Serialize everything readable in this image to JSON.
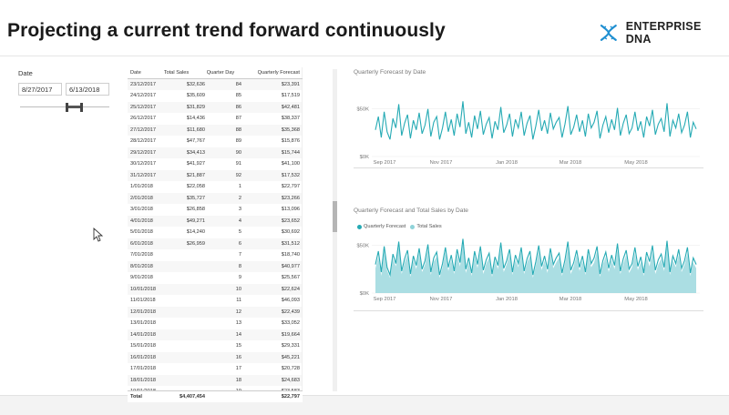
{
  "page": {
    "title": "Projecting a current trend forward continuously"
  },
  "logo": {
    "text": "ENTERPRISE DNA",
    "icon": "dna-helix-icon",
    "color": "#1f8fd1"
  },
  "slicer": {
    "title": "Date",
    "start": "8/27/2017",
    "end": "6/13/2018"
  },
  "table": {
    "columns": [
      "Date",
      "Total Sales",
      "Quarter Day",
      "Quarterly Forecast"
    ],
    "rows": [
      [
        "23/12/2017",
        "$32,636",
        "84",
        "$23,391"
      ],
      [
        "24/12/2017",
        "$35,609",
        "85",
        "$17,519"
      ],
      [
        "25/12/2017",
        "$31,829",
        "86",
        "$42,481"
      ],
      [
        "26/12/2017",
        "$14,436",
        "87",
        "$38,337"
      ],
      [
        "27/12/2017",
        "$11,680",
        "88",
        "$35,368"
      ],
      [
        "28/12/2017",
        "$47,767",
        "89",
        "$15,876"
      ],
      [
        "29/12/2017",
        "$34,413",
        "90",
        "$15,744"
      ],
      [
        "30/12/2017",
        "$41,927",
        "91",
        "$41,100"
      ],
      [
        "31/12/2017",
        "$21,887",
        "92",
        "$17,532"
      ],
      [
        "1/01/2018",
        "$22,058",
        "1",
        "$22,797"
      ],
      [
        "2/01/2018",
        "$35,727",
        "2",
        "$23,266"
      ],
      [
        "3/01/2018",
        "$26,858",
        "3",
        "$13,096"
      ],
      [
        "4/01/2018",
        "$49,271",
        "4",
        "$23,652"
      ],
      [
        "5/01/2018",
        "$14,240",
        "5",
        "$30,692"
      ],
      [
        "6/01/2018",
        "$26,959",
        "6",
        "$31,512"
      ],
      [
        "7/01/2018",
        "",
        "7",
        "$18,740"
      ],
      [
        "8/01/2018",
        "",
        "8",
        "$40,977"
      ],
      [
        "9/01/2018",
        "",
        "9",
        "$25,567"
      ],
      [
        "10/01/2018",
        "",
        "10",
        "$22,624"
      ],
      [
        "11/01/2018",
        "",
        "11",
        "$46,093"
      ],
      [
        "12/01/2018",
        "",
        "12",
        "$22,439"
      ],
      [
        "13/01/2018",
        "",
        "13",
        "$33,052"
      ],
      [
        "14/01/2018",
        "",
        "14",
        "$19,664"
      ],
      [
        "15/01/2018",
        "",
        "15",
        "$29,331"
      ],
      [
        "16/01/2018",
        "",
        "16",
        "$45,221"
      ],
      [
        "17/01/2018",
        "",
        "17",
        "$20,728"
      ],
      [
        "18/01/2018",
        "",
        "18",
        "$24,683"
      ],
      [
        "19/01/2018",
        "",
        "19",
        "$23,583"
      ],
      [
        "20/01/2018",
        "",
        "20",
        "$20,670"
      ],
      [
        "21/01/2018",
        "",
        "21",
        "$10,697"
      ]
    ],
    "total": {
      "label": "Total",
      "sales": "$4,407,454",
      "forecast": "$22,797"
    }
  },
  "colors": {
    "teal": "#25aab4",
    "teal_light": "#8fd3d9",
    "text": "#333333"
  },
  "chart_data": [
    {
      "type": "line",
      "title": "Quarterly Forecast by Date",
      "y_ticks": [
        "$50K",
        "$0K"
      ],
      "ylim": [
        0,
        65000
      ],
      "x_ticks": [
        "Sep 2017",
        "Nov 2017",
        "Jan 2018",
        "Mar 2018",
        "May 2018"
      ],
      "x_range": [
        "2017-08-27",
        "2018-06-13"
      ],
      "series": [
        {
          "values": [
            28000,
            42000,
            20000,
            47000,
            26000,
            18000,
            40000,
            30000,
            55000,
            22000,
            35000,
            44000,
            19000,
            38000,
            28000,
            46000,
            24000,
            33000,
            50000,
            21000,
            36000,
            42000,
            18000,
            30000,
            47000,
            26000,
            39000,
            22000,
            45000,
            31000,
            58000,
            24000,
            36000,
            20000,
            43000,
            29000,
            48000,
            23000,
            34000,
            41000,
            19000,
            37000,
            28000,
            52000,
            25000,
            33000,
            45000,
            21000,
            39000,
            30000,
            47000,
            22000,
            35000,
            43000,
            18000,
            32000,
            49000,
            27000,
            38000,
            24000,
            46000,
            29000,
            36000,
            41000,
            20000,
            34000,
            53000,
            23000,
            31000,
            44000,
            26000,
            38000,
            21000,
            45000,
            30000,
            36000,
            48000,
            19000,
            33000,
            42000,
            25000,
            39000,
            28000,
            51000,
            22000,
            35000,
            44000,
            24000,
            30000,
            47000,
            27000,
            37000,
            20000,
            42000,
            32000,
            49000,
            23000,
            34000,
            40000,
            26000,
            56000,
            21000,
            38000,
            30000,
            45000,
            25000,
            33000,
            47000,
            20000,
            36000,
            29000
          ]
        }
      ]
    },
    {
      "type": "area",
      "title": "Quarterly Forecast and Total Sales by Date",
      "y_ticks": [
        "$50K",
        "$0K"
      ],
      "ylim": [
        0,
        65000
      ],
      "x_ticks": [
        "Sep 2017",
        "Nov 2017",
        "Jan 2018",
        "Mar 2018",
        "May 2018"
      ],
      "x_range": [
        "2017-08-27",
        "2018-06-13"
      ],
      "legend": [
        "Quarterly Forecast",
        "Total Sales"
      ],
      "series": [
        {
          "name": "Quarterly Forecast",
          "values": [
            30000,
            44000,
            22000,
            49000,
            27000,
            19000,
            41000,
            31000,
            54000,
            23000,
            36000,
            45000,
            20000,
            39000,
            29000,
            47000,
            25000,
            34000,
            51000,
            22000,
            37000,
            43000,
            19000,
            31000,
            48000,
            27000,
            40000,
            23000,
            46000,
            32000,
            57000,
            25000,
            37000,
            21000,
            44000,
            30000,
            49000,
            24000,
            35000,
            42000,
            20000,
            38000,
            29000,
            53000,
            26000,
            34000,
            46000,
            22000,
            40000,
            31000,
            48000,
            23000,
            36000,
            44000,
            19000,
            33000,
            50000,
            28000,
            39000,
            25000,
            47000,
            30000,
            37000,
            42000,
            21000,
            35000,
            54000,
            24000,
            32000,
            45000,
            27000,
            39000,
            22000,
            46000,
            31000,
            37000,
            49000,
            20000,
            34000,
            43000,
            26000,
            40000,
            29000,
            52000,
            23000,
            36000,
            45000,
            25000,
            31000,
            48000,
            28000,
            38000,
            21000,
            43000,
            33000,
            50000,
            24000,
            35000,
            41000,
            27000,
            55000,
            22000,
            39000,
            31000,
            46000,
            26000,
            34000,
            48000,
            21000,
            37000,
            30000
          ]
        },
        {
          "name": "Total Sales",
          "values": [
            26000,
            38000,
            18000,
            44000,
            24000,
            16000,
            36000,
            28000,
            50000,
            20000,
            32000,
            40000,
            17000,
            35000,
            25000,
            42000,
            22000,
            30000,
            46000,
            19000,
            33000,
            38000,
            16000,
            27000,
            43000,
            23000,
            35000,
            20000,
            41000,
            28000,
            52000,
            21000,
            33000,
            18000,
            39000,
            26000,
            44000,
            20000,
            31000,
            37000,
            17000,
            34000,
            25000,
            47000,
            22000,
            30000,
            41000,
            19000,
            35000,
            27000,
            43000,
            20000,
            32000,
            39000,
            16000,
            29000,
            45000,
            24000,
            34000,
            21000,
            42000,
            26000,
            32000,
            37000,
            18000,
            31000,
            48000,
            20000,
            28000,
            40000,
            23000,
            34000,
            19000,
            41000,
            27000,
            32000,
            44000,
            17000,
            30000,
            38000,
            22000,
            35000,
            25000,
            46000,
            20000,
            31000,
            40000,
            21000,
            27000,
            42000,
            24000,
            33000,
            18000,
            38000,
            28000,
            44000,
            20000,
            30000,
            36000,
            23000,
            50000,
            19000,
            34000,
            27000,
            40000,
            22000,
            30000,
            42000,
            18000,
            32000,
            26000
          ]
        }
      ]
    }
  ]
}
